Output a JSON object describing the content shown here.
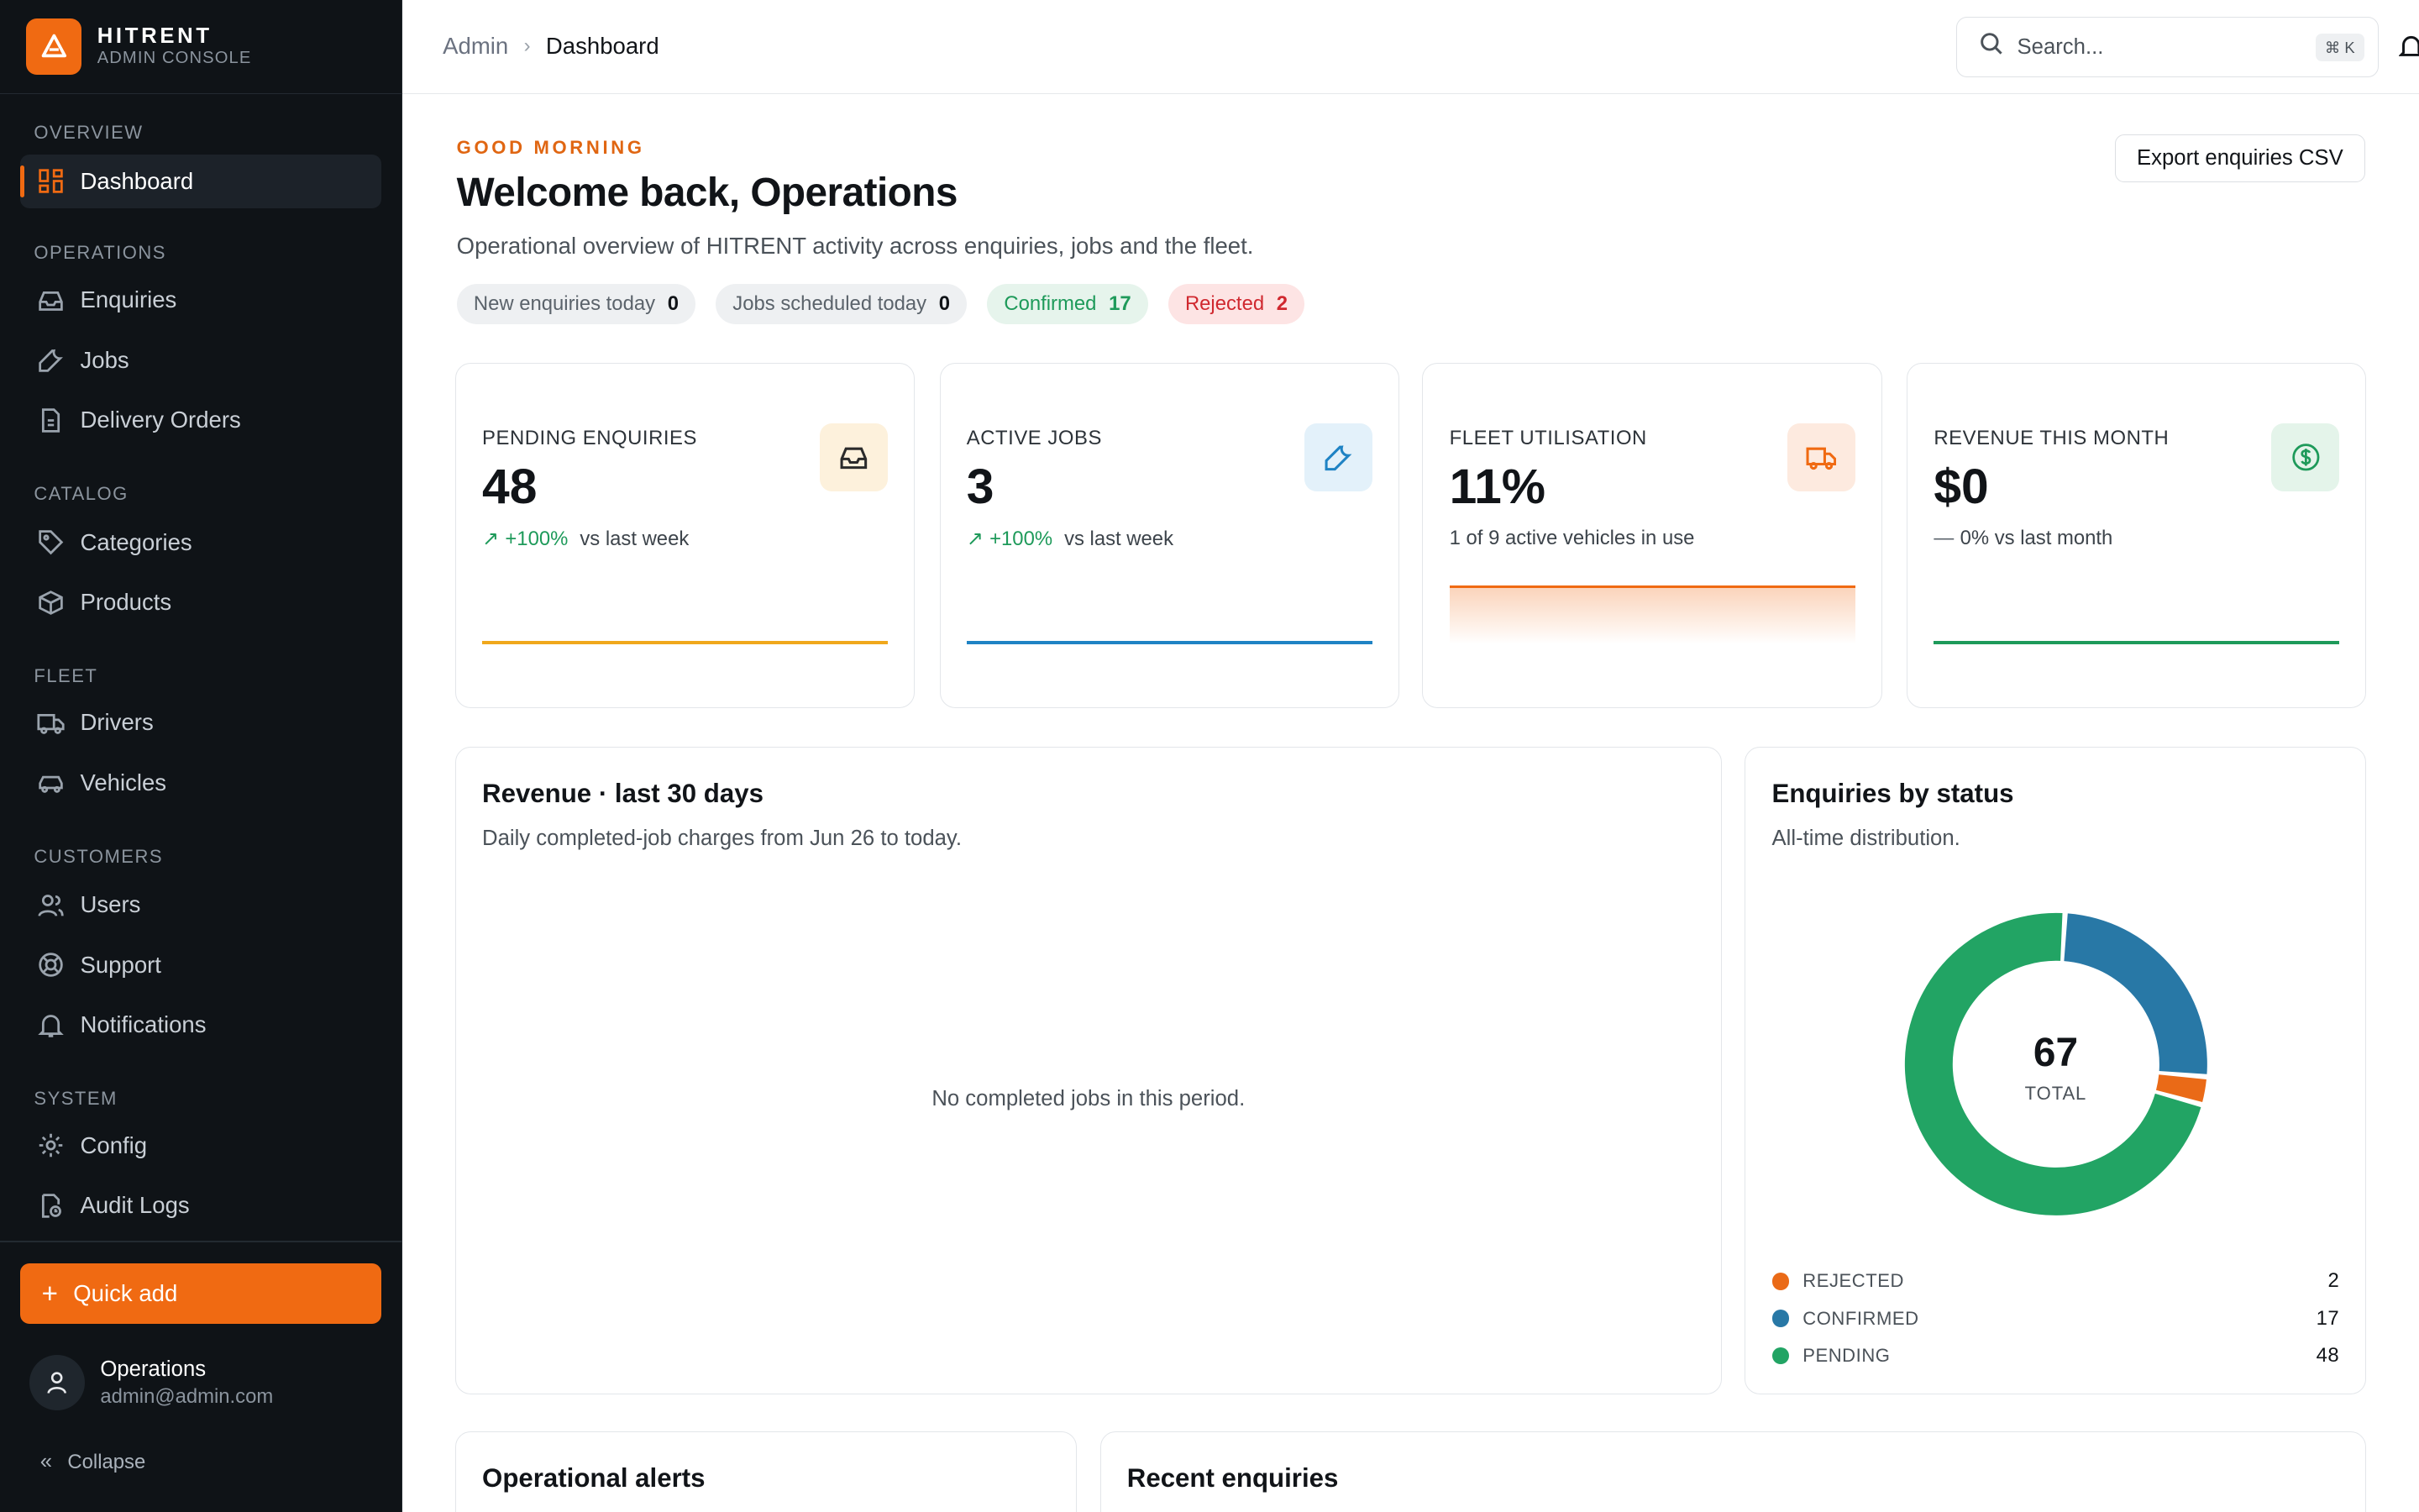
{
  "brand": {
    "name": "HITRENT",
    "subtitle": "ADMIN CONSOLE"
  },
  "sidebar": {
    "sections": [
      {
        "title": "OVERVIEW"
      },
      {
        "title": "OPERATIONS"
      },
      {
        "title": "CATALOG"
      },
      {
        "title": "FLEET"
      },
      {
        "title": "CUSTOMERS"
      },
      {
        "title": "SYSTEM"
      }
    ],
    "items": [
      {
        "label": "Dashboard",
        "icon": "dashboard-icon",
        "active": true
      },
      {
        "label": "Enquiries",
        "icon": "inbox-icon"
      },
      {
        "label": "Jobs",
        "icon": "wrench-icon"
      },
      {
        "label": "Delivery Orders",
        "icon": "document-icon"
      },
      {
        "label": "Categories",
        "icon": "tag-icon"
      },
      {
        "label": "Products",
        "icon": "box-icon"
      },
      {
        "label": "Drivers",
        "icon": "truck-icon"
      },
      {
        "label": "Vehicles",
        "icon": "car-icon"
      },
      {
        "label": "Users",
        "icon": "users-icon"
      },
      {
        "label": "Support",
        "icon": "lifebuoy-icon"
      },
      {
        "label": "Notifications",
        "icon": "bell-icon"
      },
      {
        "label": "Config",
        "icon": "gear-icon"
      },
      {
        "label": "Audit Logs",
        "icon": "audit-icon"
      }
    ],
    "quick_add": "Quick add",
    "user": {
      "name": "Operations",
      "email": "admin@admin.com"
    },
    "collapse": "Collapse"
  },
  "topbar": {
    "breadcrumb": {
      "root": "Admin",
      "current": "Dashboard"
    },
    "search_placeholder": "Search...",
    "search_shortcut": "⌘ K"
  },
  "header": {
    "greeting": "GOOD MORNING",
    "title": "Welcome back, Operations",
    "subtitle": "Operational overview of HITRENT activity across enquiries, jobs and the fleet.",
    "export_label": "Export enquiries CSV"
  },
  "pills": [
    {
      "label": "New enquiries today",
      "value": "0"
    },
    {
      "label": "Jobs scheduled today",
      "value": "0"
    },
    {
      "label": "Confirmed",
      "value": "17"
    },
    {
      "label": "Rejected",
      "value": "2"
    }
  ],
  "kpis": [
    {
      "label": "PENDING ENQUIRIES",
      "value": "48",
      "delta": "+100%",
      "delta_text": "vs last week",
      "color": "#f0a81c",
      "icon": "inbox-icon"
    },
    {
      "label": "ACTIVE JOBS",
      "value": "3",
      "delta": "+100%",
      "delta_text": "vs last week",
      "color": "#1f83c4",
      "icon": "wrench-icon"
    },
    {
      "label": "FLEET UTILISATION",
      "value": "11%",
      "note": "1 of 9 active vehicles in use",
      "color": "#f06a12",
      "icon": "truck-icon"
    },
    {
      "label": "REVENUE THIS MONTH",
      "value": "$0",
      "delta": "0%",
      "delta_text": "vs last month",
      "color": "#1e9a5a",
      "icon": "dollar-icon"
    }
  ],
  "revenue_panel": {
    "title": "Revenue · last 30 days",
    "subtitle": "Daily completed-job charges from Jun 26 to today.",
    "empty": "No completed jobs in this period."
  },
  "status_panel": {
    "title": "Enquiries by status",
    "subtitle": "All-time distribution.",
    "total": "67",
    "total_label": "TOTAL"
  },
  "chart_data": {
    "type": "pie",
    "categories": [
      "REJECTED",
      "CONFIRMED",
      "PENDING"
    ],
    "values": [
      2,
      17,
      48
    ],
    "colors": [
      "#ea6a17",
      "#2878a6",
      "#22a464"
    ],
    "total": 67
  },
  "bottom_panels": {
    "alerts_title": "Operational alerts",
    "recent_title": "Recent enquiries"
  }
}
